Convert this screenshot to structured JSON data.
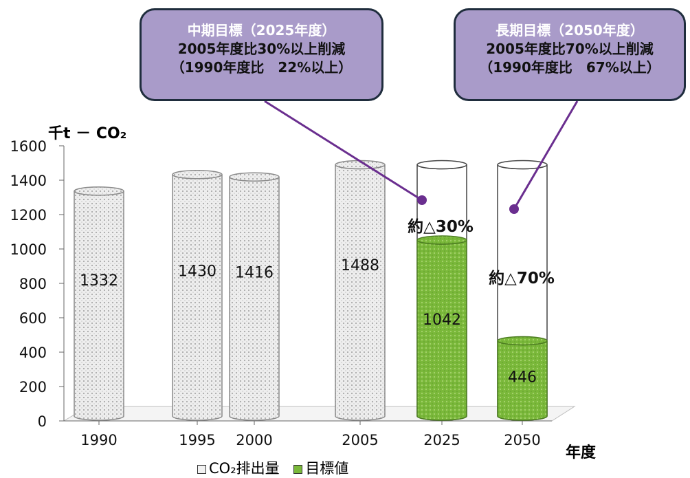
{
  "colors": {
    "callout_bg": "#a99bc9",
    "callout_border": "#1f2d3d",
    "connector": "#6a2e8f",
    "target_green": "#7ab83a"
  },
  "callouts": [
    {
      "title": "中期目標（2025年度）",
      "line1": "2005年度比30%以上削減",
      "line2": "（1990年度比　22%以上）"
    },
    {
      "title": "長期目標（2050年度）",
      "line1": "2005年度比70%以上削減",
      "line2": "（1990年度比　67%以上）"
    }
  ],
  "chart_data": {
    "type": "bar",
    "ylabel": "千t － CO₂",
    "xlabel": "年度",
    "ylim": [
      0,
      1600
    ],
    "yticks": [
      0,
      200,
      400,
      600,
      800,
      1000,
      1200,
      1400,
      1600
    ],
    "categories": [
      "1990",
      "1995",
      "2000",
      "2005",
      "2025",
      "2050"
    ],
    "series": [
      {
        "name": "CO₂排出量",
        "values": [
          1332,
          1430,
          1416,
          1488,
          null,
          null
        ]
      },
      {
        "name": "目標値",
        "values": [
          null,
          null,
          null,
          null,
          1042,
          446
        ]
      }
    ],
    "reference_outline_value": 1488,
    "annotations": [
      {
        "category": "2025",
        "text": "約△30%"
      },
      {
        "category": "2050",
        "text": "約△70%"
      }
    ],
    "legend": [
      "CO₂排出量",
      "目標値"
    ],
    "legend_position": "bottom"
  }
}
